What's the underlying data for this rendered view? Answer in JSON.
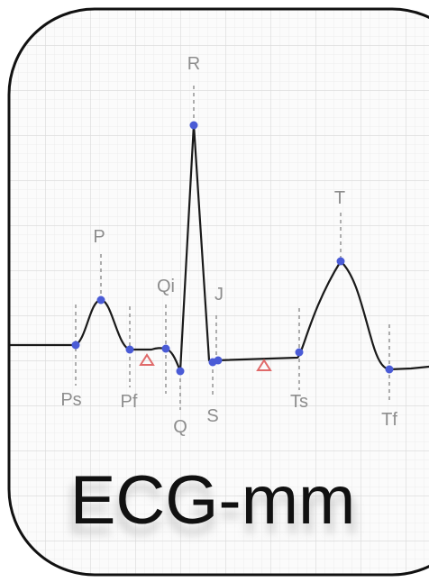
{
  "app": {
    "title": "ECG-mm"
  },
  "wave_labels": {
    "R": "R",
    "P": "P",
    "T": "T",
    "Qi": "Qi",
    "J": "J",
    "Ps": "Ps",
    "Pf": "Pf",
    "Q": "Q",
    "S": "S",
    "Ts": "Ts",
    "Tf": "Tf"
  },
  "colors": {
    "background": "#ffffff",
    "card_background": "#fbfbfb",
    "grid_minor": "#ececec",
    "grid_major": "#dcdcdc",
    "border": "#111111",
    "trace": "#1a1a1a",
    "marker": "#4a5bd6",
    "guide": "#9a9a9a",
    "label": "#8d8d8d",
    "triangle": "#e06a6a",
    "title_text": "#111111",
    "title_shadow": "#bdbdbd"
  },
  "icons": {
    "segment_marker_1": "triangle-outline-icon",
    "segment_marker_2": "triangle-outline-icon"
  }
}
